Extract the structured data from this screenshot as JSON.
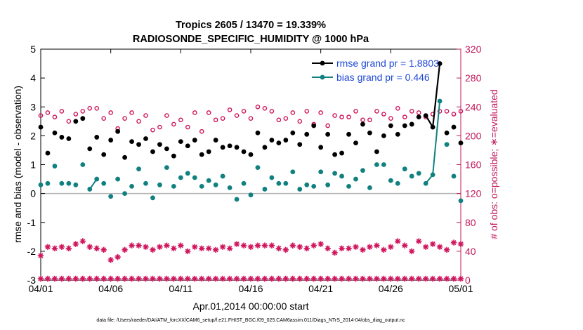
{
  "chart_data": {
    "type": "line",
    "title_line1": "Tropics 2605 / 13470 = 19.339%",
    "title_line2": "RADIOSONDE_SPECIFIC_HUMIDITY @ 1000 hPa",
    "xlabel": "Apr.01,2014 00:00:00 start",
    "ylabel_left": "rmse and bias (model - observation)",
    "ylabel_right": "# of obs: o=possible; ∗=evaluated",
    "footer": "data file: /Users/raeder/DAI/ATM_forcXX/CAM6_setup/f.e21.FHIST_BGC.f09_025.CAM6assim.011/Diags_NTrS_2014-04/obs_diag_output.nc",
    "xlim": [
      0,
      30
    ],
    "ylim_left": [
      -3,
      5
    ],
    "ylim_right": [
      0,
      320
    ],
    "x_ticks": [
      0,
      5,
      10,
      15,
      20,
      25,
      30
    ],
    "x_tick_labels": [
      "04/01",
      "04/06",
      "04/11",
      "04/16",
      "04/21",
      "04/26",
      "05/01"
    ],
    "y_ticks_left": [
      -3,
      -2,
      -1,
      0,
      1,
      2,
      3,
      4,
      5
    ],
    "y_tick_labels_left": [
      "-3",
      "-2",
      "-1",
      "0",
      "1",
      "2",
      "3",
      "4",
      "5"
    ],
    "y_ticks_right": [
      0,
      40,
      80,
      120,
      160,
      200,
      240,
      280,
      320
    ],
    "y_tick_labels_right": [
      "0",
      "40",
      "80",
      "120",
      "160",
      "200",
      "240",
      "280",
      "320"
    ],
    "legend": [
      {
        "label": "rmse grand pr = 1.8803",
        "color": "#000000"
      },
      {
        "label": "bias grand pr = 0.446",
        "color": "#118080"
      }
    ],
    "colors": {
      "rmse": "#000000",
      "bias": "#118080",
      "obs": "#d0145c",
      "zero_line": "#b3b3b3"
    },
    "x": [
      0,
      0.5,
      1,
      1.5,
      2,
      2.5,
      3,
      3.5,
      4,
      4.5,
      5,
      5.5,
      6,
      6.5,
      7,
      7.5,
      8,
      8.5,
      9,
      9.5,
      10,
      10.5,
      11,
      11.5,
      12,
      12.5,
      13,
      13.5,
      14,
      14.5,
      15,
      15.5,
      16,
      16.5,
      17,
      17.5,
      18,
      18.5,
      19,
      19.5,
      20,
      20.5,
      21,
      21.5,
      22,
      22.5,
      23,
      23.5,
      24,
      24.5,
      25,
      25.5,
      26,
      26.5,
      27,
      27.5,
      28,
      28.5,
      29,
      29.5,
      30
    ],
    "series": [
      {
        "name": "rmse",
        "values": [
          2.3,
          1.4,
          2.1,
          1.95,
          1.9,
          2.5,
          2.6,
          1.55,
          1.95,
          1.35,
          1.85,
          2.15,
          1.25,
          1.8,
          1.7,
          1.9,
          1.45,
          1.7,
          1.55,
          1.3,
          1.8,
          1.65,
          1.85,
          1.35,
          1.45,
          1.85,
          1.6,
          1.65,
          1.6,
          1.45,
          1.35,
          2.1,
          1.6,
          1.85,
          1.75,
          1.85,
          2.1,
          1.7,
          2.05,
          2.35,
          1.6,
          2.05,
          1.35,
          1.4,
          2.05,
          1.75,
          2.4,
          2.1,
          1.45,
          2.0,
          2.35,
          2.05,
          2.35,
          2.4,
          2.65,
          2.7,
          2.3,
          4.5,
          2.1,
          2.3,
          1.75
        ]
      },
      {
        "name": "bias",
        "values": [
          0.3,
          0.35,
          0.95,
          0.35,
          0.35,
          0.3,
          1.0,
          0.15,
          0.5,
          0.35,
          -0.1,
          0.5,
          0.0,
          0.25,
          0.85,
          0.35,
          -0.15,
          0.3,
          0.9,
          0.25,
          0.55,
          0.7,
          0.55,
          0.25,
          0.45,
          0.3,
          0.6,
          0.2,
          -0.2,
          0.35,
          -0.05,
          0.9,
          0.15,
          0.55,
          0.35,
          0.35,
          0.75,
          0.15,
          0.3,
          0.25,
          0.75,
          0.3,
          0.7,
          0.6,
          0.25,
          0.5,
          0.8,
          0.2,
          1.0,
          1.0,
          0.45,
          0.35,
          0.85,
          0.6,
          0.7,
          0.35,
          0.65,
          3.2,
          1.7,
          0.6,
          -0.25
        ]
      },
      {
        "name": "obs_possible",
        "values": [
          228,
          232,
          226,
          234,
          220,
          230,
          234,
          238,
          238,
          224,
          232,
          210,
          224,
          232,
          220,
          228,
          208,
          212,
          228,
          216,
          222,
          212,
          232,
          206,
          232,
          222,
          224,
          236,
          228,
          234,
          224,
          240,
          238,
          234,
          222,
          224,
          232,
          220,
          234,
          216,
          232,
          214,
          228,
          226,
          226,
          234,
          222,
          222,
          234,
          230,
          224,
          238,
          226,
          234,
          232,
          226,
          230,
          234,
          234,
          230,
          234
        ]
      },
      {
        "name": "obs_evaluated",
        "values": [
          34,
          46,
          44,
          46,
          44,
          50,
          54,
          46,
          44,
          42,
          28,
          32,
          42,
          48,
          48,
          46,
          42,
          46,
          48,
          44,
          48,
          40,
          46,
          44,
          44,
          42,
          46,
          44,
          50,
          48,
          46,
          48,
          48,
          48,
          44,
          42,
          48,
          46,
          44,
          48,
          50,
          44,
          38,
          44,
          44,
          46,
          42,
          46,
          48,
          42,
          46,
          54,
          48,
          40,
          54,
          46,
          50,
          46,
          42,
          52,
          50
        ]
      },
      {
        "name": "obs_bottom",
        "values": [
          2,
          2,
          2,
          2,
          2,
          2,
          2,
          2,
          2,
          2,
          2,
          2,
          2,
          2,
          2,
          2,
          2,
          2,
          2,
          2,
          2,
          2,
          2,
          2,
          2,
          2,
          2,
          2,
          2,
          2,
          2,
          2,
          2,
          2,
          2,
          2,
          2,
          2,
          2,
          2,
          2,
          2,
          2,
          2,
          2,
          2,
          2,
          2,
          2,
          2,
          2,
          2,
          2,
          2,
          2,
          2,
          2,
          2,
          2,
          2,
          2
        ]
      }
    ],
    "line_segments": {
      "rmse": [
        55,
        57
      ],
      "bias": [
        7,
        8,
        55,
        57
      ]
    }
  }
}
